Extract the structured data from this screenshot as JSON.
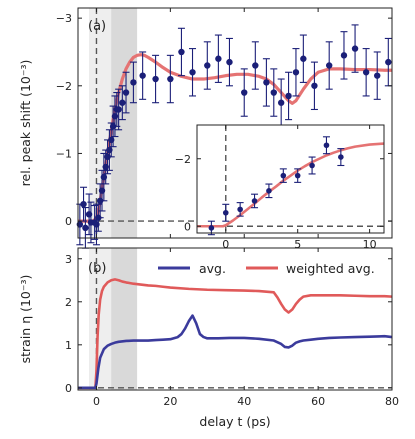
{
  "chart_data": [
    {
      "panel": "a",
      "type": "scatter",
      "panel_label": "(a)",
      "xlabel": "",
      "ylabel": "rel. peak shift (10⁻³)",
      "xlim": [
        -5,
        80
      ],
      "ylim": [
        0.25,
        -3.15
      ],
      "y_inverted": true,
      "xticks": [
        0,
        20,
        40,
        60,
        80
      ],
      "yticks": [
        0,
        -1,
        -2,
        -3
      ],
      "ytick_labels": [
        "0",
        "−1",
        "−2",
        "−3"
      ],
      "shaded_x": [
        -2,
        11
      ],
      "light_shaded_x": [
        -2,
        4
      ],
      "dashed_h": 0,
      "dashed_v": 0,
      "colors": {
        "points": "#1b1f78",
        "fit": "#e57373",
        "shade": "#d9d9d9",
        "shade_light": "#eeeeee",
        "dash": "#555555"
      },
      "series": [
        {
          "kind": "points_with_errorbars",
          "x": [
            -4.5,
            -3.5,
            -3,
            -2,
            -1.5,
            -0.5,
            0,
            0.5,
            1,
            1.5,
            2,
            2.5,
            3,
            3.5,
            4,
            4.5,
            5,
            5.5,
            6,
            7,
            8,
            10,
            12.5,
            16,
            20,
            23,
            26,
            30,
            33,
            36,
            40,
            43,
            46,
            48,
            50,
            52,
            54,
            56,
            59,
            63,
            67,
            70,
            73,
            76,
            79
          ],
          "y": [
            0.05,
            -0.25,
            0.1,
            -0.1,
            0.02,
            0.02,
            0.05,
            -0.05,
            -0.3,
            -0.45,
            -0.65,
            -0.8,
            -0.95,
            -1.05,
            -1.2,
            -1.4,
            -1.55,
            -1.65,
            -1.65,
            -1.75,
            -1.9,
            -2.05,
            -2.15,
            -2.1,
            -2.1,
            -2.5,
            -2.2,
            -2.3,
            -2.4,
            -2.35,
            -1.9,
            -2.3,
            -2.05,
            -1.9,
            -1.75,
            -1.85,
            -2.2,
            -2.4,
            -2.0,
            -2.3,
            -2.45,
            -2.55,
            -2.2,
            -2.15,
            -2.35
          ],
          "yerr": [
            0.3,
            0.25,
            0.3,
            0.3,
            0.3,
            0.25,
            0.3,
            0.2,
            0.25,
            0.3,
            0.35,
            0.25,
            0.25,
            0.3,
            0.25,
            0.3,
            0.3,
            0.25,
            0.3,
            0.25,
            0.3,
            0.3,
            0.35,
            0.35,
            0.35,
            0.35,
            0.35,
            0.35,
            0.35,
            0.35,
            0.35,
            0.35,
            0.35,
            0.35,
            0.35,
            0.35,
            0.35,
            0.35,
            0.35,
            0.35,
            0.35,
            0.35,
            0.35,
            0.35,
            0.35
          ]
        },
        {
          "kind": "fit_line",
          "x": [
            -5,
            -1,
            -0.5,
            0,
            0.5,
            1,
            1.5,
            2,
            2.5,
            3,
            3.5,
            4,
            4.5,
            5,
            6,
            7,
            8,
            9,
            10,
            11,
            12,
            13,
            14,
            16,
            18,
            20,
            23,
            26,
            29,
            32,
            35,
            38,
            41,
            44,
            46,
            48,
            50,
            52,
            53,
            54,
            56,
            58,
            60,
            63,
            66,
            70,
            74,
            78,
            80
          ],
          "y": [
            0,
            0,
            -0.02,
            -0.05,
            -0.15,
            -0.3,
            -0.48,
            -0.65,
            -0.82,
            -1.0,
            -1.17,
            -1.33,
            -1.5,
            -1.65,
            -1.9,
            -2.1,
            -2.25,
            -2.35,
            -2.42,
            -2.45,
            -2.46,
            -2.45,
            -2.42,
            -2.35,
            -2.27,
            -2.2,
            -2.14,
            -2.1,
            -2.1,
            -2.12,
            -2.15,
            -2.17,
            -2.17,
            -2.14,
            -2.1,
            -2.02,
            -1.9,
            -1.78,
            -1.74,
            -1.78,
            -1.95,
            -2.1,
            -2.2,
            -2.25,
            -2.25,
            -2.24,
            -2.24,
            -2.23,
            -2.23
          ]
        }
      ],
      "inset": {
        "xlim": [
          -2,
          11
        ],
        "ylim": [
          0.2,
          -3.0
        ],
        "xticks": [
          0,
          5,
          10
        ],
        "yticks": [
          0,
          -2
        ],
        "ytick_labels": [
          "0",
          "−2"
        ],
        "dashed_h": 0,
        "dashed_v": 0,
        "points": {
          "x": [
            -1,
            0,
            1,
            2,
            3,
            4,
            5,
            6,
            7,
            8
          ],
          "y": [
            0.05,
            -0.4,
            -0.5,
            -0.75,
            -1.05,
            -1.5,
            -1.5,
            -1.8,
            -2.4,
            -2.05
          ],
          "yerr": [
            0.2,
            0.25,
            0.2,
            0.2,
            0.2,
            0.2,
            0.2,
            0.25,
            0.25,
            0.25
          ]
        },
        "fit": {
          "x": [
            -2,
            -0.2,
            0,
            0.5,
            1,
            1.5,
            2,
            2.5,
            3,
            3.5,
            4,
            4.5,
            5,
            5.5,
            6,
            6.5,
            7,
            7.5,
            8,
            8.5,
            9,
            10,
            11
          ],
          "y": [
            0,
            0,
            -0.03,
            -0.17,
            -0.33,
            -0.5,
            -0.67,
            -0.85,
            -1.02,
            -1.18,
            -1.35,
            -1.5,
            -1.65,
            -1.78,
            -1.9,
            -2.0,
            -2.1,
            -2.18,
            -2.25,
            -2.31,
            -2.36,
            -2.42,
            -2.45
          ]
        }
      }
    },
    {
      "panel": "b",
      "type": "line",
      "panel_label": "(b)",
      "xlabel": "delay t (ps)",
      "ylabel": "strain η (10⁻³)",
      "xlim": [
        -5,
        80
      ],
      "ylim": [
        -0.05,
        3.25
      ],
      "xticks": [
        0,
        20,
        40,
        60,
        80
      ],
      "yticks": [
        0,
        1,
        2,
        3
      ],
      "shaded_x": [
        -2,
        11
      ],
      "light_shaded_x": [
        -2,
        4
      ],
      "dashed_h": 0,
      "dashed_v": 0,
      "colors": {
        "avg": "#3b3b9c",
        "weighted": "#e05a5a",
        "shade": "#d9d9d9",
        "shade_light": "#eeeeee",
        "dash": "#555555"
      },
      "series": [
        {
          "name": "avg.",
          "x": [
            -5,
            -0.3,
            0,
            0.5,
            1,
            2,
            3,
            4,
            5,
            6,
            8,
            10,
            12,
            14,
            16,
            18,
            20,
            22,
            23,
            24,
            25,
            26,
            27,
            28,
            29,
            30,
            33,
            36,
            40,
            44,
            48,
            50,
            51,
            52,
            53,
            54,
            55,
            56,
            58,
            60,
            63,
            66,
            70,
            74,
            78,
            80
          ],
          "y": [
            0,
            0,
            0.1,
            0.45,
            0.7,
            0.9,
            0.98,
            1.02,
            1.05,
            1.07,
            1.09,
            1.1,
            1.1,
            1.1,
            1.11,
            1.12,
            1.13,
            1.18,
            1.25,
            1.38,
            1.55,
            1.68,
            1.5,
            1.25,
            1.18,
            1.15,
            1.15,
            1.16,
            1.16,
            1.14,
            1.1,
            1.02,
            0.95,
            0.94,
            0.98,
            1.05,
            1.08,
            1.1,
            1.12,
            1.14,
            1.16,
            1.17,
            1.18,
            1.19,
            1.2,
            1.18
          ]
        },
        {
          "name": "weighted avg.",
          "x": [
            -5,
            -0.3,
            0,
            0.3,
            0.6,
            1,
            1.5,
            2,
            3,
            4,
            5,
            6,
            7,
            8,
            10,
            12,
            14,
            16,
            18,
            20,
            25,
            30,
            35,
            40,
            44,
            48,
            49,
            50,
            51,
            52,
            53,
            54,
            55,
            56,
            58,
            60,
            63,
            66,
            70,
            74,
            78,
            80
          ],
          "y": [
            0,
            0,
            0.4,
            1.2,
            1.7,
            2.05,
            2.25,
            2.35,
            2.45,
            2.5,
            2.52,
            2.5,
            2.47,
            2.45,
            2.42,
            2.4,
            2.38,
            2.37,
            2.35,
            2.33,
            2.3,
            2.28,
            2.27,
            2.26,
            2.25,
            2.22,
            2.1,
            1.95,
            1.82,
            1.75,
            1.82,
            1.95,
            2.05,
            2.12,
            2.15,
            2.15,
            2.15,
            2.15,
            2.14,
            2.13,
            2.13,
            2.12
          ]
        }
      ]
    }
  ]
}
